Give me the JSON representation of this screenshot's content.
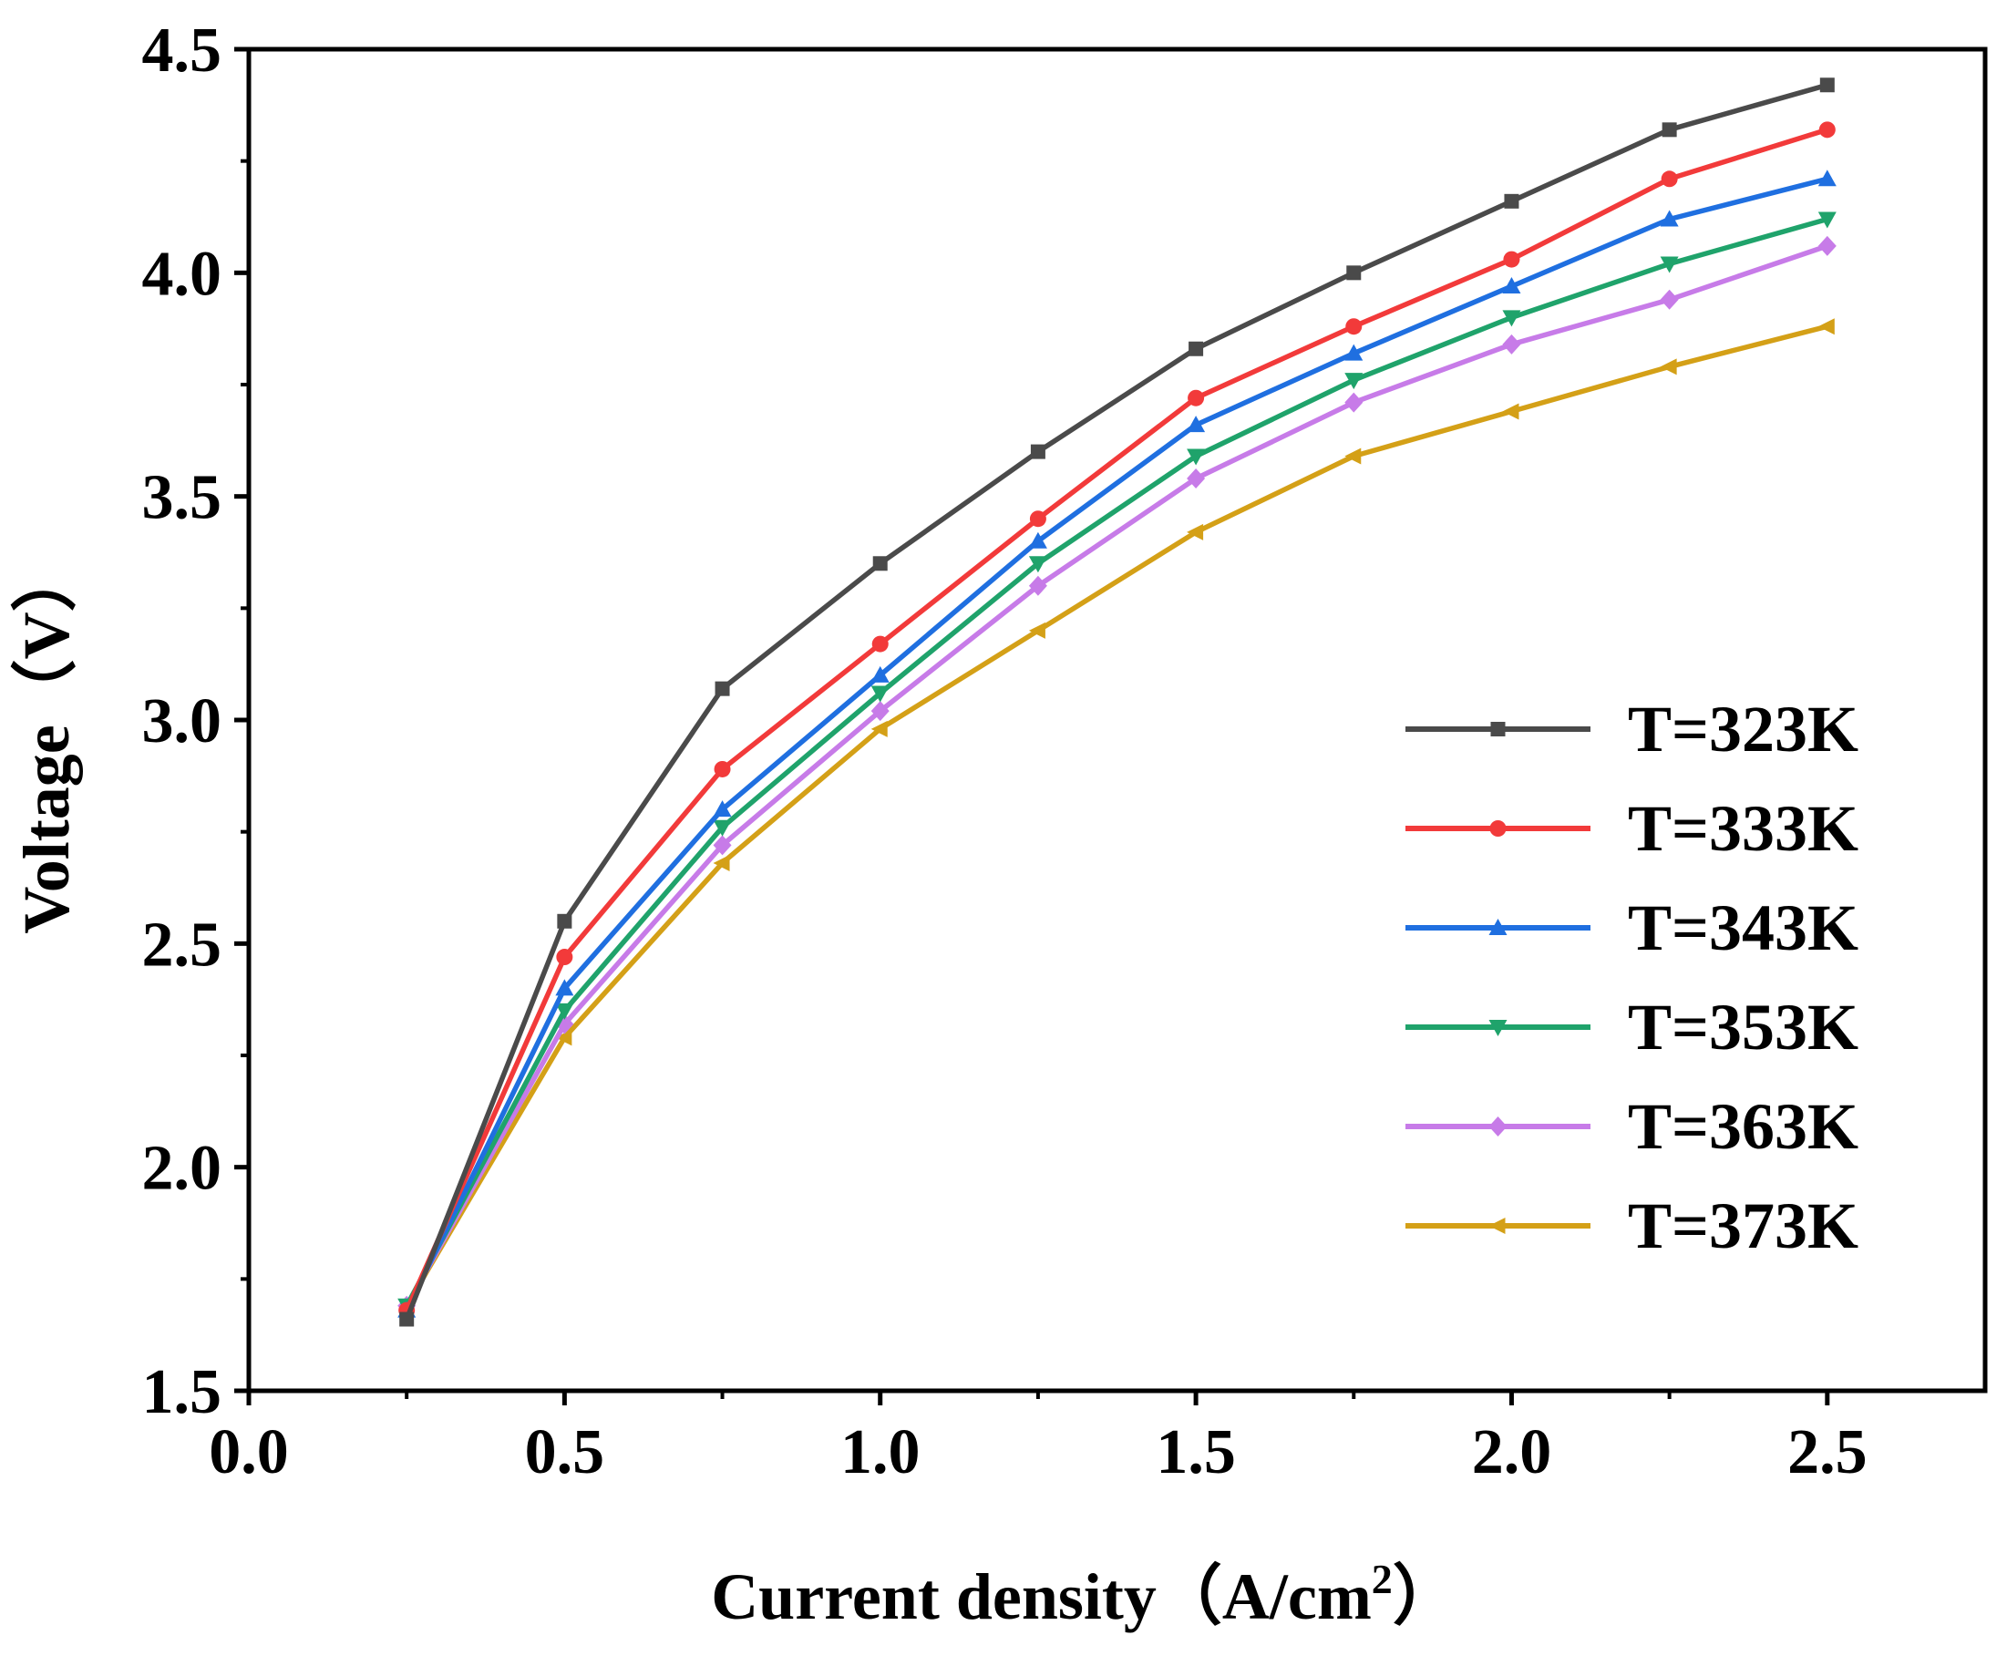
{
  "chart_data": {
    "type": "line",
    "title": "",
    "xlabel_main": "Current density",
    "xlabel_unit": "（A/cm",
    "xlabel_sup": "2",
    "xlabel_close": "）",
    "ylabel": "Voltage（V）",
    "xlim": [
      0.0,
      2.75
    ],
    "ylim": [
      1.5,
      4.5
    ],
    "xticks": [
      0.0,
      0.5,
      1.0,
      1.5,
      2.0,
      2.5
    ],
    "xtick_labels": [
      "0.0",
      "0.5",
      "1.0",
      "1.5",
      "2.0",
      "2.5"
    ],
    "yticks": [
      1.5,
      2.0,
      2.5,
      3.0,
      3.5,
      4.0,
      4.5
    ],
    "ytick_labels": [
      "1.5",
      "2.0",
      "2.5",
      "3.0",
      "3.5",
      "4.0",
      "4.5"
    ],
    "grid": false,
    "legend_position": "bottom-right",
    "x": [
      0.25,
      0.5,
      0.75,
      1.0,
      1.25,
      1.5,
      1.75,
      2.0,
      2.25,
      2.5
    ],
    "series": [
      {
        "name": "T=323K",
        "color": "#4a4a4a",
        "marker": "square",
        "values": [
          1.66,
          2.55,
          3.07,
          3.35,
          3.6,
          3.83,
          4.0,
          4.16,
          4.32,
          4.42
        ]
      },
      {
        "name": "T=333K",
        "color": "#f23a3a",
        "marker": "circle",
        "values": [
          1.68,
          2.47,
          2.89,
          3.17,
          3.45,
          3.72,
          3.88,
          4.03,
          4.21,
          4.32
        ]
      },
      {
        "name": "T=343K",
        "color": "#1f6fe0",
        "marker": "triangle-up",
        "values": [
          1.68,
          2.4,
          2.8,
          3.1,
          3.4,
          3.66,
          3.82,
          3.97,
          4.12,
          4.21
        ]
      },
      {
        "name": "T=353K",
        "color": "#1fa36b",
        "marker": "triangle-down",
        "values": [
          1.69,
          2.35,
          2.76,
          3.06,
          3.35,
          3.59,
          3.76,
          3.9,
          4.02,
          4.12
        ]
      },
      {
        "name": "T=363K",
        "color": "#c77be8",
        "marker": "diamond",
        "values": [
          1.69,
          2.32,
          2.72,
          3.02,
          3.3,
          3.54,
          3.71,
          3.84,
          3.94,
          4.06
        ]
      },
      {
        "name": "T=373K",
        "color": "#d4a017",
        "marker": "left-triangle",
        "values": [
          1.69,
          2.29,
          2.68,
          2.98,
          3.2,
          3.42,
          3.59,
          3.69,
          3.79,
          3.88
        ]
      }
    ]
  }
}
